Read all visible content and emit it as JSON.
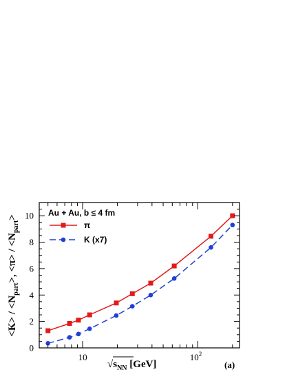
{
  "chart_data": {
    "type": "line",
    "panel_label": "(a)",
    "annotation": "Au + Au,  b ≤ 4 fm",
    "xscale": "log",
    "xlim": [
      4.2,
      230
    ],
    "ylim": [
      0,
      11
    ],
    "x_ticks": [
      {
        "value": 10,
        "base": "10",
        "exp": ""
      },
      {
        "value": 100,
        "base": "10",
        "exp": "2"
      }
    ],
    "y_ticks": [
      0,
      2,
      4,
      6,
      8,
      10
    ],
    "xlabel": {
      "base": "√s",
      "sub": "NN",
      "rest": "  [GeV]"
    },
    "ylabel": {
      "p1": "<K> / <N",
      "s1": "part",
      "p2": ">,  <π> / <N",
      "s2": "part",
      "p3": ">"
    },
    "legend_position": "top-left",
    "series": [
      {
        "name": "π",
        "color": "#e31a1c",
        "marker": "square",
        "line_style": "solid",
        "x": [
          5,
          7.7,
          9.2,
          11.5,
          19.6,
          27,
          39,
          62.4,
          130,
          200
        ],
        "y": [
          1.3,
          1.85,
          2.1,
          2.5,
          3.4,
          4.1,
          4.9,
          6.2,
          8.45,
          10.0
        ]
      },
      {
        "name": "K  (x7)",
        "color": "#1f3fd8",
        "marker": "circle",
        "line_style": "dashed",
        "x": [
          5,
          7.7,
          9.2,
          11.5,
          19.6,
          27,
          39,
          62.4,
          130,
          200
        ],
        "y": [
          0.35,
          0.8,
          1.05,
          1.45,
          2.45,
          3.15,
          4.0,
          5.25,
          7.6,
          9.3
        ]
      }
    ]
  }
}
